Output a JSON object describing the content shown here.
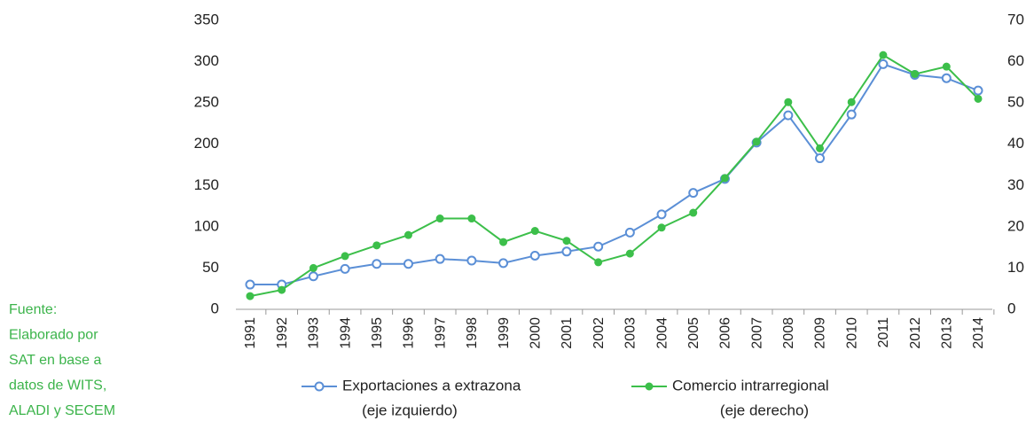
{
  "chart_data": {
    "type": "line",
    "categories": [
      "1991",
      "1992",
      "1993",
      "1994",
      "1995",
      "1996",
      "1997",
      "1998",
      "1999",
      "2000",
      "2001",
      "2002",
      "2003",
      "2004",
      "2005",
      "2006",
      "2007",
      "2008",
      "2009",
      "2010",
      "2011",
      "2012",
      "2013",
      "2014"
    ],
    "series": [
      {
        "name": "Exportaciones a extrazona",
        "name_note": "(eje izquierdo)",
        "color": "#5b8fd6",
        "marker": "hollow",
        "values": [
          30,
          30,
          40,
          49,
          55,
          55,
          61,
          59,
          56,
          65,
          70,
          76,
          93,
          115,
          141,
          158,
          202,
          235,
          183,
          236,
          297,
          284,
          280,
          265
        ]
      },
      {
        "name": "Comercio intrarregional",
        "name_note": "(eje derecho)",
        "color": "#3cbf4a",
        "marker": "filled",
        "axis": "y2",
        "values": [
          3.2,
          4.7,
          10,
          12.9,
          15.5,
          18,
          22,
          22,
          16.3,
          19,
          16.6,
          11.4,
          13.5,
          19.8,
          23.4,
          31.8,
          40.6,
          50.2,
          39,
          50.2,
          61.6,
          57,
          58.8,
          51
        ]
      }
    ],
    "ylim": [
      0,
      350
    ],
    "yticks": [
      0,
      50,
      100,
      150,
      200,
      250,
      300,
      350
    ],
    "y2lim": [
      0,
      70
    ],
    "y2ticks": [
      0,
      10,
      20,
      30,
      40,
      50,
      60,
      70
    ],
    "grid": false,
    "source": [
      "Fuente:",
      "Elaborado por",
      "SAT en base a",
      "datos de WITS,",
      "ALADI y SECEM"
    ]
  }
}
